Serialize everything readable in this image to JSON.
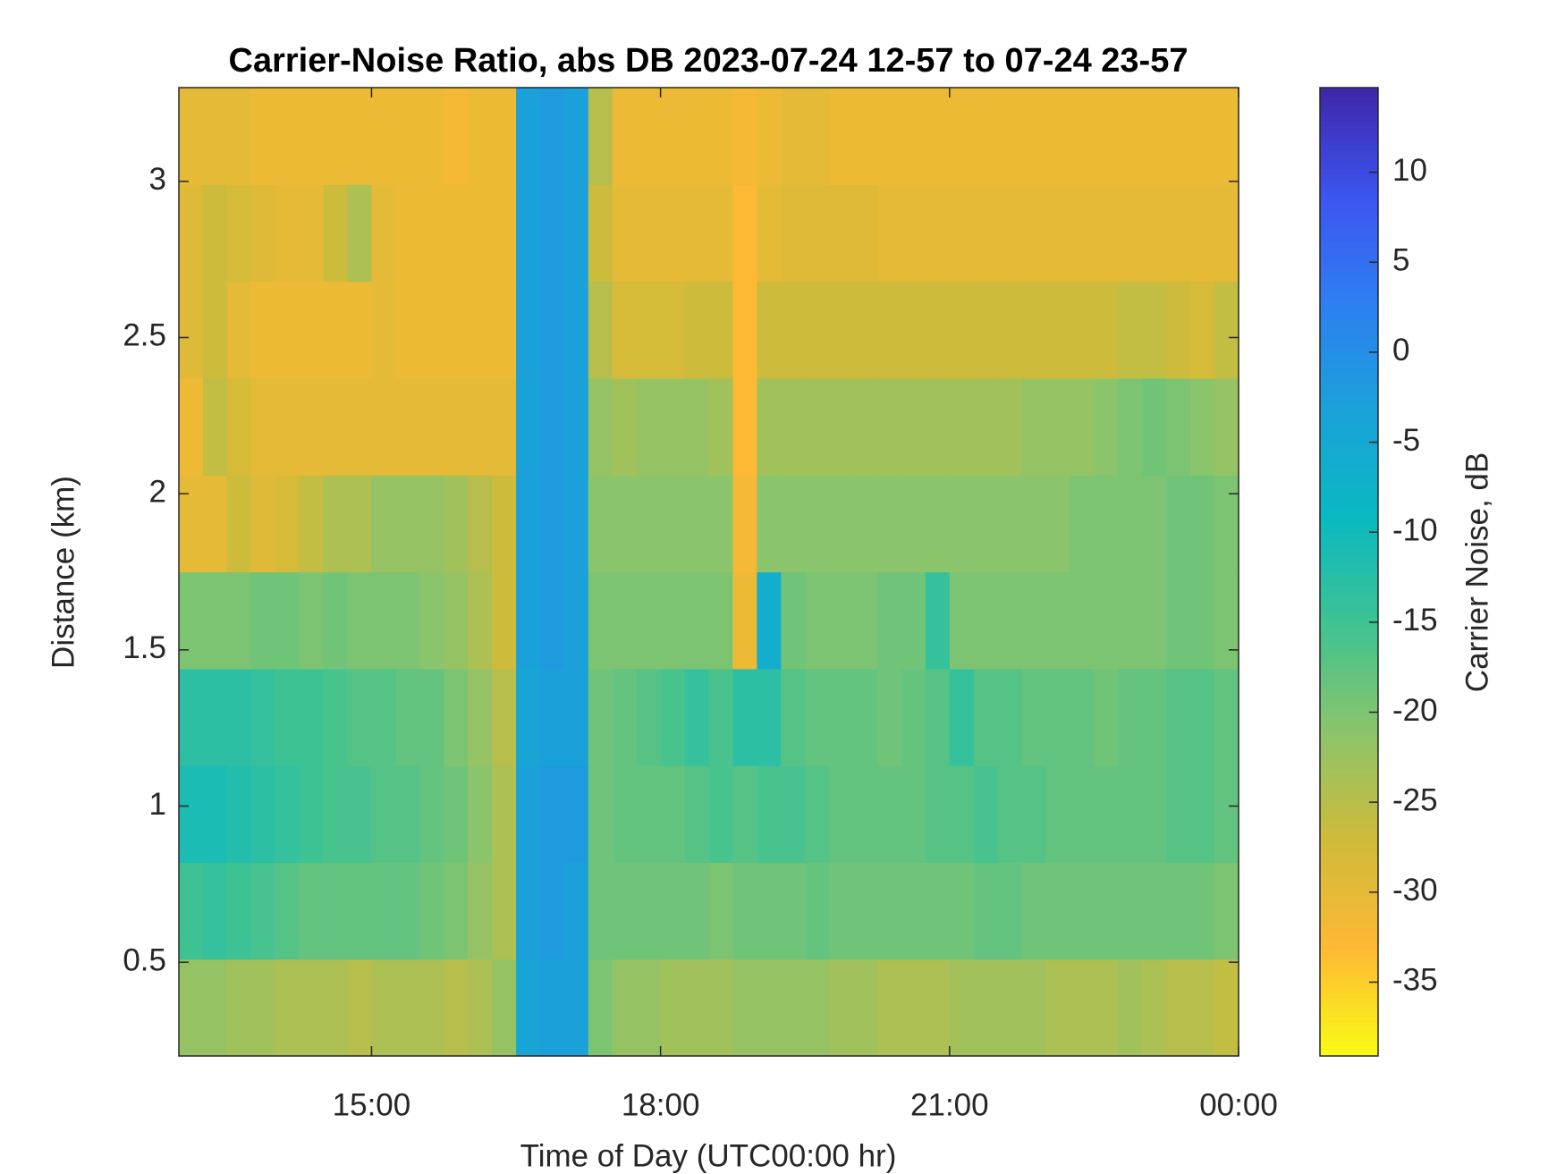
{
  "chart_data": {
    "type": "heatmap",
    "title": "Carrier-Noise Ratio, abs DB 2023-07-24 12-57 to 07-24 23-57",
    "x_label": "Time of Day (UTC00:00 hr)",
    "y_label": "Distance (km)",
    "colorbar_label": "Carrier Noise, dB",
    "xlim": [
      13,
      24
    ],
    "xticks": [
      {
        "value": 15,
        "label": "15:00"
      },
      {
        "value": 18,
        "label": "18:00"
      },
      {
        "value": 21,
        "label": "21:00"
      },
      {
        "value": 24,
        "label": "00:00"
      }
    ],
    "ylim": [
      0.2,
      3.3
    ],
    "yticks": [
      0.5,
      1,
      1.5,
      2,
      2.5,
      3
    ],
    "clim": [
      -39.1,
      14.7
    ],
    "cticks": [
      -35,
      -30,
      -25,
      -20,
      -15,
      -10,
      -5,
      0,
      5,
      10
    ],
    "colormap": [
      "#3e26a8",
      "#3d54f0",
      "#2d7ff2",
      "#1aa2d9",
      "#0ab9c1",
      "#3fc392",
      "#8cc46a",
      "#cfbb3a",
      "#feb934",
      "#f9fb15"
    ],
    "x": [
      13.125,
      13.375,
      13.625,
      13.875,
      14.125,
      14.375,
      14.625,
      14.875,
      15.125,
      15.375,
      15.625,
      15.875,
      16.125,
      16.375,
      16.625,
      16.875,
      17.125,
      17.375,
      17.625,
      17.875,
      18.125,
      18.375,
      18.625,
      18.875,
      19.125,
      19.375,
      19.625,
      19.875,
      20.125,
      20.375,
      20.625,
      20.875,
      21.125,
      21.375,
      21.625,
      21.875,
      22.125,
      22.375,
      22.625,
      22.875,
      23.125,
      23.375,
      23.625,
      23.875
    ],
    "y": [
      0.355,
      0.665,
      0.975,
      1.285,
      1.595,
      1.905,
      2.215,
      2.525,
      2.835,
      3.145
    ],
    "z": [
      [
        -22,
        -22,
        -23,
        -23,
        -24,
        -24,
        -24,
        -25,
        -24,
        -24,
        -24,
        -25,
        -24,
        -22,
        -4,
        -3,
        -3,
        -20,
        -22,
        -22,
        -23,
        -23,
        -23,
        -22,
        -22,
        -22,
        -22,
        -23,
        -23,
        -24,
        -24,
        -24,
        -23,
        -23,
        -23,
        -23,
        -24,
        -24,
        -24,
        -23,
        -24,
        -25,
        -25,
        -26
      ],
      [
        -15,
        -14,
        -15,
        -16,
        -17,
        -18,
        -18,
        -18,
        -18,
        -18,
        -19,
        -20,
        -22,
        -24,
        -3,
        -2,
        -3,
        -19,
        -19,
        -19,
        -19,
        -19,
        -20,
        -19,
        -19,
        -19,
        -18,
        -19,
        -19,
        -19,
        -19,
        -19,
        -19,
        -18,
        -18,
        -19,
        -19,
        -19,
        -19,
        -19,
        -19,
        -19,
        -19,
        -20
      ],
      [
        -11,
        -11,
        -12,
        -13,
        -14,
        -15,
        -16,
        -16,
        -17,
        -17,
        -18,
        -19,
        -21,
        -24,
        -3,
        -2,
        -2,
        -19,
        -18,
        -18,
        -18,
        -17,
        -16,
        -17,
        -16,
        -16,
        -17,
        -18,
        -18,
        -18,
        -18,
        -17,
        -17,
        -16,
        -17,
        -17,
        -18,
        -18,
        -18,
        -18,
        -18,
        -17,
        -17,
        -18
      ],
      [
        -13,
        -13,
        -13,
        -14,
        -15,
        -15,
        -16,
        -17,
        -17,
        -18,
        -18,
        -20,
        -22,
        -25,
        -4,
        -3,
        -3,
        -19,
        -18,
        -17,
        -16,
        -14,
        -16,
        -13,
        -13,
        -17,
        -18,
        -18,
        -18,
        -19,
        -18,
        -17,
        -14,
        -17,
        -17,
        -18,
        -18,
        -18,
        -19,
        -18,
        -18,
        -17,
        -17,
        -18
      ],
      [
        -20,
        -20,
        -20,
        -19,
        -19,
        -20,
        -19,
        -20,
        -20,
        -20,
        -21,
        -22,
        -24,
        -27,
        -3,
        -2,
        -3,
        -20,
        -20,
        -20,
        -20,
        -20,
        -20,
        -31,
        -6,
        -19,
        -20,
        -20,
        -20,
        -19,
        -19,
        -14,
        -20,
        -20,
        -20,
        -20,
        -20,
        -20,
        -20,
        -20,
        -20,
        -19,
        -19,
        -20
      ],
      [
        -30,
        -30,
        -27,
        -29,
        -28,
        -26,
        -24,
        -24,
        -22,
        -22,
        -22,
        -23,
        -25,
        -27,
        -3,
        -2,
        -3,
        -21,
        -21,
        -21,
        -21,
        -21,
        -21,
        -32,
        -21,
        -21,
        -21,
        -21,
        -21,
        -21,
        -21,
        -21,
        -21,
        -21,
        -21,
        -21,
        -21,
        -20,
        -20,
        -20,
        -20,
        -19,
        -19,
        -20
      ],
      [
        -31,
        -26,
        -28,
        -30,
        -30,
        -30,
        -30,
        -30,
        -30,
        -30,
        -30,
        -30,
        -30,
        -30,
        -3,
        -2,
        -3,
        -22,
        -23,
        -22,
        -22,
        -22,
        -23,
        -33,
        -23,
        -23,
        -23,
        -23,
        -23,
        -23,
        -23,
        -23,
        -23,
        -23,
        -23,
        -22,
        -22,
        -22,
        -21,
        -20,
        -19,
        -20,
        -21,
        -22
      ],
      [
        -29,
        -27,
        -30,
        -31,
        -31,
        -31,
        -31,
        -31,
        -30,
        -31,
        -31,
        -31,
        -31,
        -31,
        -3,
        -2,
        -3,
        -25,
        -28,
        -28,
        -28,
        -27,
        -27,
        -33,
        -27,
        -27,
        -27,
        -27,
        -27,
        -27,
        -27,
        -27,
        -27,
        -27,
        -27,
        -27,
        -27,
        -27,
        -27,
        -26,
        -26,
        -27,
        -28,
        -26
      ],
      [
        -29,
        -27,
        -28,
        -29,
        -30,
        -30,
        -27,
        -24,
        -30,
        -31,
        -31,
        -31,
        -31,
        -31,
        -3,
        -2,
        -3,
        -27,
        -30,
        -30,
        -30,
        -30,
        -30,
        -33,
        -30,
        -29,
        -29,
        -29,
        -29,
        -30,
        -30,
        -30,
        -30,
        -30,
        -30,
        -30,
        -30,
        -30,
        -30,
        -30,
        -30,
        -30,
        -30,
        -30
      ],
      [
        -30,
        -30,
        -30,
        -31,
        -31,
        -31,
        -31,
        -31,
        -31,
        -31,
        -31,
        -32,
        -31,
        -31,
        -3,
        -2,
        -3,
        -25,
        -31,
        -31,
        -31,
        -31,
        -31,
        -32,
        -31,
        -30,
        -30,
        -31,
        -31,
        -31,
        -31,
        -31,
        -31,
        -31,
        -31,
        -31,
        -31,
        -31,
        -31,
        -31,
        -31,
        -31,
        -31,
        -31
      ]
    ]
  }
}
